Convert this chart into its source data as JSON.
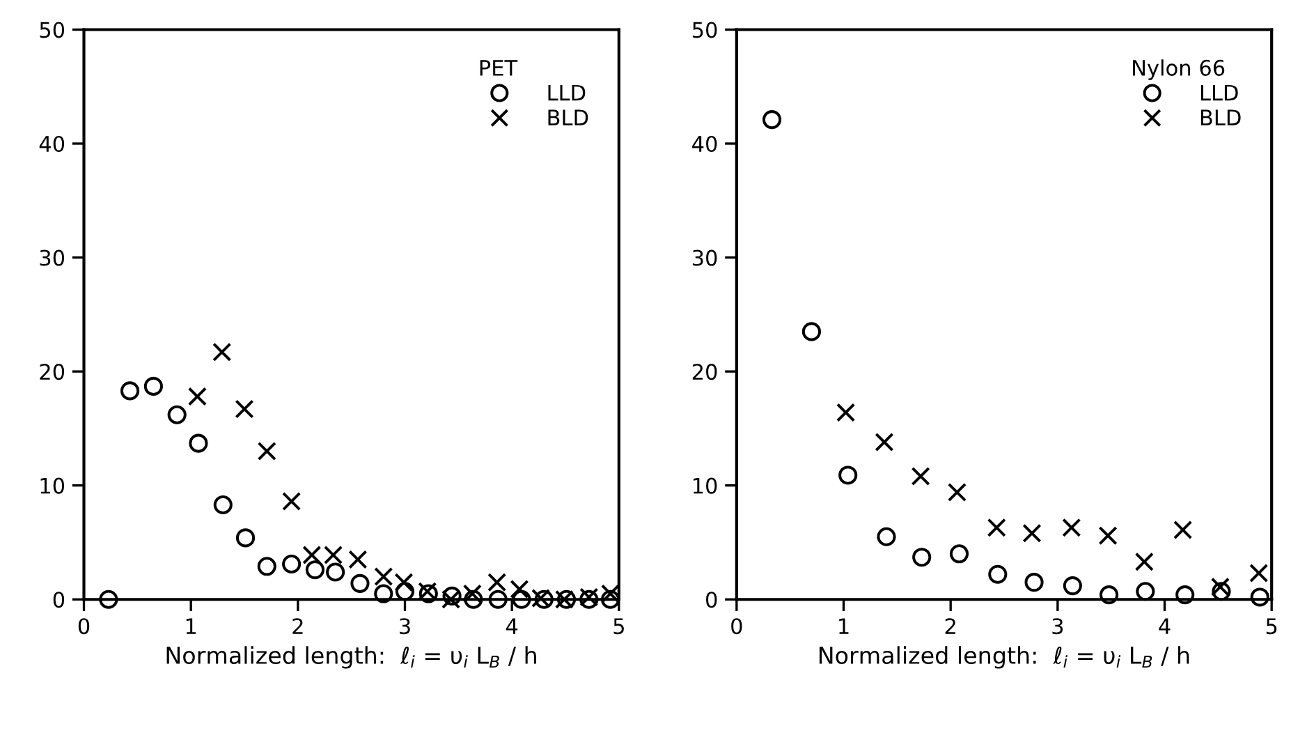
{
  "chart_data": [
    {
      "type": "scatter",
      "xlabel": "Normalized length:  ℓ$_{i}$ = υ$_{i}$ L$_{B}$ / h",
      "legend_title": "PET",
      "legend": "top right",
      "grid": false,
      "xlim": [
        0,
        5
      ],
      "ylim": [
        0,
        50
      ],
      "xticks": [
        0,
        1,
        2,
        3,
        4,
        5
      ],
      "yticks": [
        0,
        10,
        20,
        30,
        40,
        50
      ],
      "series": [
        {
          "name": "LLD",
          "color": "#000000",
          "marker": "circle",
          "x": [
            0.23,
            0.43,
            0.65,
            0.87,
            1.07,
            1.3,
            1.51,
            1.71,
            1.94,
            2.16,
            2.35,
            2.58,
            2.8,
            3.0,
            3.22,
            3.44,
            3.64,
            3.87,
            4.09,
            4.3,
            4.51,
            4.72,
            4.92
          ],
          "values": [
            0,
            18.3,
            18.7,
            16.2,
            13.7,
            8.3,
            5.4,
            2.9,
            3.1,
            2.6,
            2.4,
            1.4,
            0.5,
            0.7,
            0.5,
            0.3,
            0,
            0,
            0,
            0,
            0,
            0,
            0
          ]
        },
        {
          "name": "BLD",
          "color": "#000000",
          "marker": "cross",
          "x": [
            1.06,
            1.29,
            1.5,
            1.71,
            1.94,
            2.13,
            2.33,
            2.56,
            2.8,
            2.99,
            3.21,
            3.43,
            3.63,
            3.86,
            4.07,
            4.27,
            4.49,
            4.72,
            4.92
          ],
          "values": [
            17.8,
            21.7,
            16.7,
            13.0,
            8.6,
            3.9,
            3.9,
            3.5,
            2.0,
            1.5,
            0.7,
            0,
            0.5,
            1.5,
            0.9,
            0.1,
            0,
            0.2,
            0.5
          ]
        }
      ]
    },
    {
      "type": "scatter",
      "xlabel": "Normalized length:  ℓ$_{i}$ = υ$_{i}$ L$_{B}$ / h",
      "legend_title": "Nylon 66",
      "legend": "top right",
      "grid": false,
      "xlim": [
        0,
        5
      ],
      "ylim": [
        0,
        50
      ],
      "xticks": [
        0,
        1,
        2,
        3,
        4,
        5
      ],
      "yticks": [
        0,
        10,
        20,
        30,
        40,
        50
      ],
      "series": [
        {
          "name": "LLD",
          "color": "#000000",
          "marker": "circle",
          "x": [
            0.33,
            0.7,
            1.04,
            1.4,
            1.73,
            2.08,
            2.44,
            2.78,
            3.14,
            3.48,
            3.82,
            4.19,
            4.53,
            4.89
          ],
          "values": [
            42.1,
            23.5,
            10.9,
            5.5,
            3.7,
            4.0,
            2.2,
            1.5,
            1.2,
            0.4,
            0.7,
            0.4,
            0.7,
            0.2
          ]
        },
        {
          "name": "BLD",
          "color": "#000000",
          "marker": "cross",
          "x": [
            1.02,
            1.38,
            1.72,
            2.06,
            2.43,
            2.76,
            3.13,
            3.47,
            3.81,
            4.17,
            4.52,
            4.88
          ],
          "values": [
            16.4,
            13.8,
            10.8,
            9.4,
            6.3,
            5.8,
            6.3,
            5.6,
            3.3,
            6.1,
            1.1,
            2.3
          ]
        }
      ]
    }
  ]
}
